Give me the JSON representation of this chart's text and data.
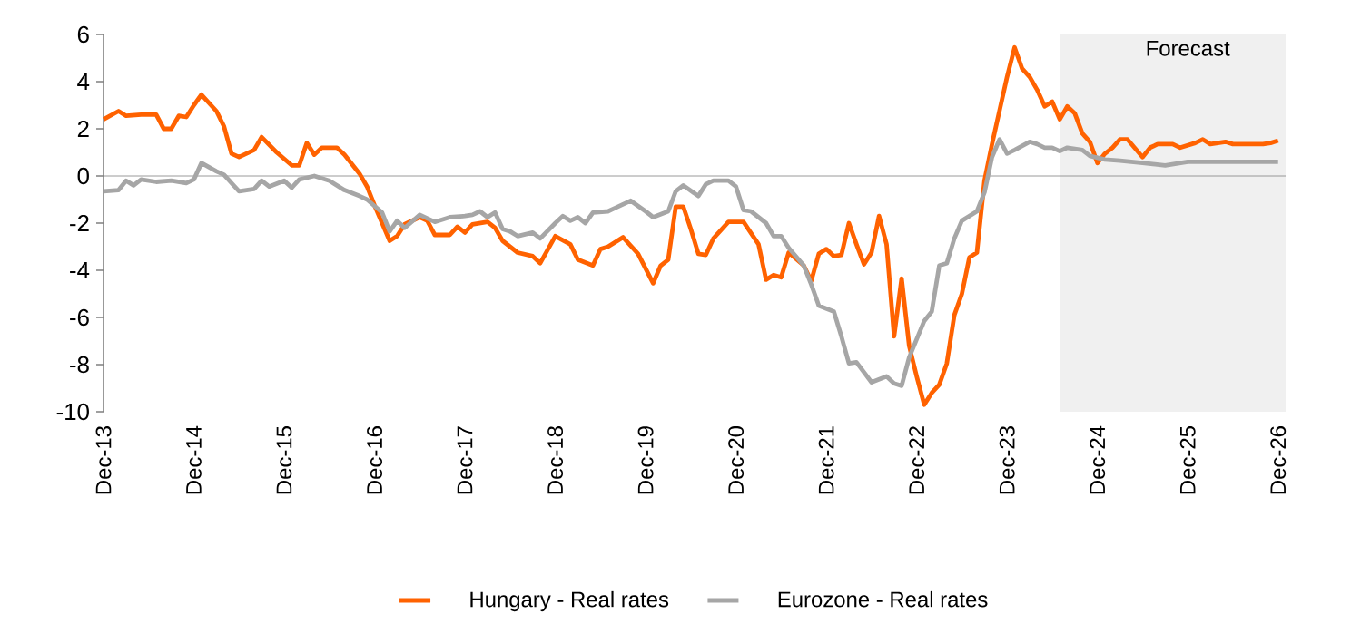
{
  "chart_data": {
    "type": "line",
    "xlim": [
      "2013-12",
      "2027-01"
    ],
    "xticks": [
      {
        "value": "2013-12",
        "label": "Dec-13"
      },
      {
        "value": "2014-12",
        "label": "Dec-14"
      },
      {
        "value": "2015-12",
        "label": "Dec-15"
      },
      {
        "value": "2016-12",
        "label": "Dec-16"
      },
      {
        "value": "2017-12",
        "label": "Dec-17"
      },
      {
        "value": "2018-12",
        "label": "Dec-18"
      },
      {
        "value": "2019-12",
        "label": "Dec-19"
      },
      {
        "value": "2020-12",
        "label": "Dec-20"
      },
      {
        "value": "2021-12",
        "label": "Dec-21"
      },
      {
        "value": "2022-12",
        "label": "Dec-22"
      },
      {
        "value": "2023-12",
        "label": "Dec-23"
      },
      {
        "value": "2024-12",
        "label": "Dec-24"
      },
      {
        "value": "2025-12",
        "label": "Dec-25"
      },
      {
        "value": "2026-12",
        "label": "Dec-26"
      }
    ],
    "ylim": [
      -10,
      6
    ],
    "yticks": [
      -10,
      -8,
      -6,
      -4,
      -2,
      0,
      2,
      4,
      6
    ],
    "grid": false,
    "legend": "bottom",
    "ref_lines": [
      {
        "axis": "y",
        "value": 0,
        "color": "#808080"
      }
    ],
    "bands": [
      {
        "axis": "x",
        "from": "2024-07",
        "to": "2027-01",
        "label": "Forecast",
        "color": "#f0f0f0"
      }
    ],
    "series": [
      {
        "name": "Hungary - Real rates",
        "color": "#ff6200",
        "x": [
          "2013-12",
          "2014-02",
          "2014-03",
          "2014-05",
          "2014-07",
          "2014-08",
          "2014-09",
          "2014-10",
          "2014-11",
          "2014-12",
          "2015-01",
          "2015-03",
          "2015-04",
          "2015-05",
          "2015-06",
          "2015-08",
          "2015-09",
          "2015-11",
          "2016-01",
          "2016-02",
          "2016-03",
          "2016-04",
          "2016-05",
          "2016-07",
          "2016-08",
          "2016-10",
          "2016-11",
          "2016-12",
          "2017-01",
          "2017-02",
          "2017-03",
          "2017-04",
          "2017-06",
          "2017-07",
          "2017-08",
          "2017-10",
          "2017-11",
          "2017-12",
          "2018-01",
          "2018-03",
          "2018-04",
          "2018-05",
          "2018-07",
          "2018-09",
          "2018-10",
          "2018-12",
          "2019-02",
          "2019-03",
          "2019-05",
          "2019-06",
          "2019-07",
          "2019-09",
          "2019-11",
          "2020-01",
          "2020-02",
          "2020-03",
          "2020-04",
          "2020-05",
          "2020-06",
          "2020-07",
          "2020-08",
          "2020-09",
          "2020-11",
          "2021-01",
          "2021-03",
          "2021-04",
          "2021-05",
          "2021-06",
          "2021-07",
          "2021-09",
          "2021-10",
          "2021-11",
          "2021-12",
          "2022-01",
          "2022-02",
          "2022-03",
          "2022-04",
          "2022-05",
          "2022-06",
          "2022-07",
          "2022-08",
          "2022-09",
          "2022-10",
          "2022-11",
          "2022-12",
          "2023-01",
          "2023-02",
          "2023-03",
          "2023-04",
          "2023-05",
          "2023-06",
          "2023-07",
          "2023-08",
          "2023-09",
          "2023-10",
          "2023-12",
          "2024-01",
          "2024-02",
          "2024-03",
          "2024-04",
          "2024-05",
          "2024-06",
          "2024-07",
          "2024-08",
          "2024-09",
          "2024-10",
          "2024-11",
          "2024-12",
          "2025-01",
          "2025-02",
          "2025-03",
          "2025-04",
          "2025-06",
          "2025-07",
          "2025-08",
          "2025-10",
          "2025-11",
          "2026-01",
          "2026-02",
          "2026-03",
          "2026-05",
          "2026-06",
          "2026-10",
          "2026-11",
          "2026-12"
        ],
        "values": [
          2.4,
          2.75,
          2.55,
          2.6,
          2.6,
          2.0,
          2.0,
          2.55,
          2.5,
          3.0,
          3.45,
          2.75,
          2.1,
          0.95,
          0.8,
          1.1,
          1.65,
          1.0,
          0.45,
          0.45,
          1.4,
          0.9,
          1.2,
          1.2,
          0.9,
          0.1,
          -0.45,
          -1.25,
          -2.0,
          -2.75,
          -2.55,
          -2.05,
          -1.75,
          -1.9,
          -2.5,
          -2.5,
          -2.15,
          -2.4,
          -2.05,
          -1.95,
          -2.2,
          -2.75,
          -3.25,
          -3.4,
          -3.7,
          -2.55,
          -2.9,
          -3.55,
          -3.8,
          -3.1,
          -3.0,
          -2.6,
          -3.3,
          -4.55,
          -3.8,
          -3.55,
          -1.3,
          -1.3,
          -2.25,
          -3.3,
          -3.35,
          -2.65,
          -1.95,
          -1.95,
          -2.9,
          -4.4,
          -4.2,
          -4.3,
          -3.25,
          -3.8,
          -4.45,
          -3.3,
          -3.1,
          -3.4,
          -3.35,
          -2.0,
          -2.9,
          -3.75,
          -3.25,
          -1.7,
          -2.9,
          -6.8,
          -4.35,
          -7.2,
          -8.5,
          -9.7,
          -9.2,
          -8.85,
          -7.95,
          -5.9,
          -5.0,
          -3.45,
          -3.25,
          -0.2,
          1.35,
          4.2,
          5.45,
          4.55,
          4.2,
          3.65,
          2.95,
          3.15,
          2.4,
          2.95,
          2.65,
          1.8,
          1.45,
          0.55,
          0.95,
          1.2,
          1.55,
          1.55,
          0.8,
          1.2,
          1.35,
          1.35,
          1.2,
          1.4,
          1.55,
          1.35,
          1.45,
          1.35,
          1.35,
          1.4,
          1.5
        ]
      },
      {
        "name": "Eurozone - Real rates",
        "color": "#a6a6a6",
        "x": [
          "2013-12",
          "2014-02",
          "2014-03",
          "2014-04",
          "2014-05",
          "2014-07",
          "2014-09",
          "2014-11",
          "2014-12",
          "2015-01",
          "2015-03",
          "2015-04",
          "2015-06",
          "2015-08",
          "2015-09",
          "2015-10",
          "2015-12",
          "2016-01",
          "2016-02",
          "2016-04",
          "2016-06",
          "2016-08",
          "2016-10",
          "2016-11",
          "2017-01",
          "2017-02",
          "2017-03",
          "2017-04",
          "2017-06",
          "2017-08",
          "2017-10",
          "2017-12",
          "2018-01",
          "2018-02",
          "2018-03",
          "2018-04",
          "2018-05",
          "2018-06",
          "2018-07",
          "2018-09",
          "2018-10",
          "2018-12",
          "2019-01",
          "2019-02",
          "2019-03",
          "2019-04",
          "2019-05",
          "2019-07",
          "2019-08",
          "2019-10",
          "2019-12",
          "2020-01",
          "2020-03",
          "2020-04",
          "2020-05",
          "2020-07",
          "2020-08",
          "2020-09",
          "2020-11",
          "2020-12",
          "2021-01",
          "2021-02",
          "2021-04",
          "2021-05",
          "2021-06",
          "2021-07",
          "2021-09",
          "2021-10",
          "2021-11",
          "2022-01",
          "2022-02",
          "2022-03",
          "2022-04",
          "2022-06",
          "2022-08",
          "2022-09",
          "2022-10",
          "2022-11",
          "2023-01",
          "2023-02",
          "2023-03",
          "2023-04",
          "2023-05",
          "2023-06",
          "2023-08",
          "2023-09",
          "2023-10",
          "2023-11",
          "2023-12",
          "2024-01",
          "2024-03",
          "2024-04",
          "2024-05",
          "2024-06",
          "2024-07",
          "2024-08",
          "2024-10",
          "2024-11",
          "2025-01",
          "2025-03",
          "2025-06",
          "2025-09",
          "2025-12",
          "2026-04",
          "2026-12"
        ],
        "values": [
          -0.65,
          -0.6,
          -0.2,
          -0.4,
          -0.15,
          -0.25,
          -0.2,
          -0.3,
          -0.15,
          0.55,
          0.2,
          0.05,
          -0.65,
          -0.55,
          -0.2,
          -0.45,
          -0.2,
          -0.5,
          -0.15,
          0,
          -0.2,
          -0.6,
          -0.85,
          -1.0,
          -1.55,
          -2.35,
          -1.9,
          -2.2,
          -1.65,
          -1.95,
          -1.75,
          -1.7,
          -1.65,
          -1.5,
          -1.75,
          -1.55,
          -2.25,
          -2.35,
          -2.55,
          -2.4,
          -2.65,
          -2.0,
          -1.7,
          -1.9,
          -1.75,
          -2.0,
          -1.55,
          -1.5,
          -1.35,
          -1.05,
          -1.5,
          -1.75,
          -1.5,
          -0.65,
          -0.4,
          -0.85,
          -0.35,
          -0.2,
          -0.2,
          -0.45,
          -1.45,
          -1.5,
          -2.0,
          -2.55,
          -2.55,
          -3.05,
          -3.8,
          -4.6,
          -5.5,
          -5.75,
          -6.8,
          -7.95,
          -7.9,
          -8.75,
          -8.5,
          -8.8,
          -8.9,
          -7.7,
          -6.15,
          -5.75,
          -3.8,
          -3.7,
          -2.65,
          -1.9,
          -1.5,
          -0.7,
          0.8,
          1.55,
          0.95,
          1.1,
          1.45,
          1.35,
          1.2,
          1.2,
          1.05,
          1.2,
          1.1,
          0.85,
          0.7,
          0.65,
          0.55,
          0.45,
          0.6,
          0.6,
          0.6
        ]
      }
    ]
  }
}
